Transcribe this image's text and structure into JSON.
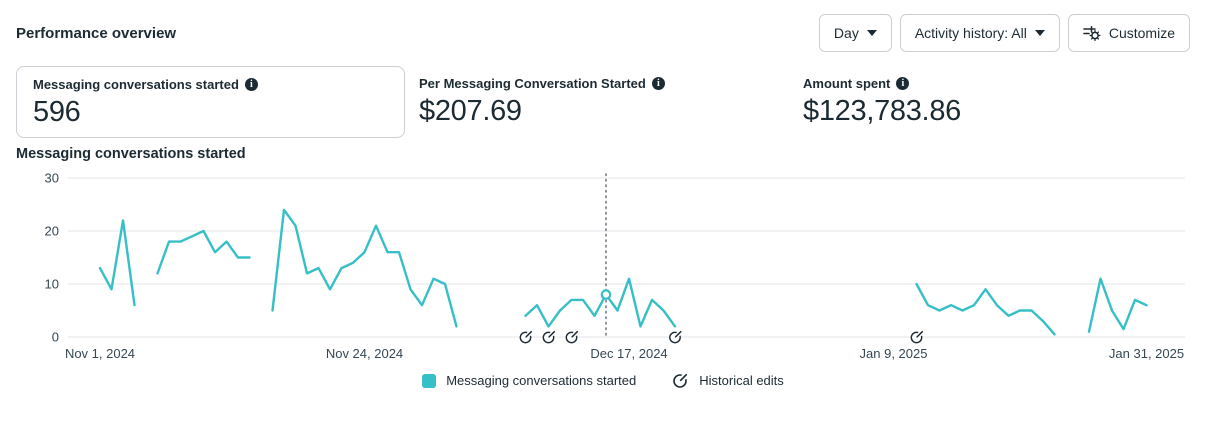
{
  "header": {
    "title": "Performance overview"
  },
  "toolbar": {
    "day_dropdown_label": "Day",
    "activity_history_label": "Activity history: All",
    "customize_label": "Customize"
  },
  "metric_cards": [
    {
      "label": "Messaging conversations started",
      "value": "596",
      "selected": true
    },
    {
      "label": "Per Messaging Conversation Started",
      "value": "$207.69",
      "selected": false
    },
    {
      "label": "Amount spent",
      "value": "$123,783.86",
      "selected": false
    }
  ],
  "chart_section_title": "Messaging conversations started",
  "legend": {
    "series_label": "Messaging conversations started",
    "historical_edits_label": "Historical edits"
  },
  "colors": {
    "series_teal": "#36bfc6",
    "grid": "#e4e6eb",
    "axis_text": "#344854",
    "text_primary": "#1c2b33",
    "guideline": "#5a676f",
    "border": "#ccd0d5"
  },
  "chart_data": {
    "type": "line",
    "title": "Messaging conversations started",
    "xlabel": "",
    "ylabel": "",
    "ylim": [
      0,
      30
    ],
    "yticks": [
      0,
      10,
      20,
      30
    ],
    "grid": true,
    "legend_position": "bottom",
    "x_unit": "day",
    "num_days": 92,
    "x_tick_labels": [
      "Nov 1, 2024",
      "Nov 24, 2024",
      "Dec 17, 2024",
      "Jan 9, 2025",
      "Jan 31, 2025"
    ],
    "x_tick_day_indices": [
      0,
      23,
      46,
      69,
      91
    ],
    "series": [
      {
        "name": "Messaging conversations started",
        "color": "#36bfc6",
        "values": [
          13,
          9,
          22,
          6,
          null,
          12,
          18,
          18,
          19,
          20,
          16,
          18,
          15,
          15,
          null,
          5,
          24,
          21,
          12,
          13,
          9,
          13,
          14,
          16,
          21,
          16,
          16,
          9,
          6,
          11,
          10,
          2,
          null,
          null,
          null,
          null,
          null,
          4,
          6,
          2,
          5,
          7,
          7,
          4,
          8,
          5,
          11,
          2,
          7,
          5,
          2,
          null,
          null,
          null,
          null,
          null,
          null,
          null,
          null,
          null,
          null,
          null,
          null,
          null,
          null,
          null,
          null,
          null,
          null,
          null,
          null,
          10,
          6,
          5,
          6,
          5,
          6,
          9,
          6,
          4,
          5,
          5,
          3,
          0.5,
          null,
          null,
          1,
          11,
          5,
          1.5,
          7,
          6
        ]
      }
    ],
    "hover_point": {
      "day_index": 44,
      "value": 8
    },
    "historical_edit_day_indices": [
      37,
      39,
      41,
      50,
      71
    ]
  }
}
